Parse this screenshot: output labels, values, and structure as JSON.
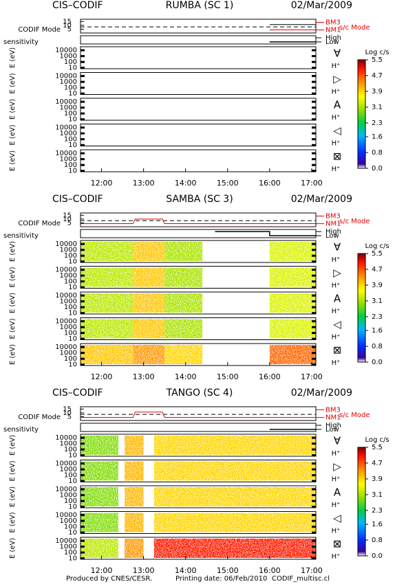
{
  "chart_data": [
    {
      "type": "spectrogram",
      "title_left": "CIS–CODIF",
      "title": "RUMBA (SC 1)",
      "date": "02/Mar/2009",
      "xlim": [
        11.5,
        17.1
      ],
      "xticks": [
        {
          "value": 12,
          "label": "12:00"
        },
        {
          "value": 13,
          "label": "13:00"
        },
        {
          "value": 14,
          "label": "14:00"
        },
        {
          "value": 15,
          "label": "15:00"
        },
        {
          "value": 16,
          "label": "16:00"
        },
        {
          "value": 17,
          "label": "17:00"
        }
      ],
      "mode_panel": {
        "label": "CODIF Mode",
        "ylim": [
          0,
          18
        ],
        "yticks": [
          15,
          10,
          5
        ],
        "y2ticks": [
          {
            "value": 14,
            "label": "BM3"
          },
          {
            "value": 4,
            "label": "NM1"
          }
        ],
        "y2_title": "s/c Mode",
        "series": [
          {
            "color": "#000000",
            "dashed": true,
            "x": [
              11.5,
              17.1
            ],
            "values": [
              8,
              8
            ]
          },
          {
            "color": "#000000",
            "dashed": false,
            "x": [
              16.0,
              17.1
            ],
            "values": [
              11,
              11
            ]
          },
          {
            "color": "#e00000",
            "dashed": false,
            "x": [
              16.0,
              17.1
            ],
            "values": [
              4,
              4
            ]
          }
        ]
      },
      "sensitivity": {
        "label": "sensitivity",
        "ylim": [
          -0.5,
          1.5
        ],
        "yticks": [
          {
            "value": 1,
            "label": "High"
          },
          {
            "value": 0,
            "label": "Low"
          }
        ],
        "series": [
          {
            "color": "#000000",
            "x": [
              16.0,
              17.1
            ],
            "values": [
              0,
              0
            ]
          }
        ]
      },
      "log_y": true,
      "ylim": [
        7,
        40000
      ],
      "yticks": [
        10000,
        1000,
        100,
        10
      ],
      "rows": [
        {
          "ylabel": "E (eV)",
          "symbol": "∀",
          "species": "H⁺",
          "segments": []
        },
        {
          "ylabel": "E (eV)",
          "symbol": "▷",
          "species": "H⁺",
          "segments": []
        },
        {
          "ylabel": "E (eV)",
          "symbol": "A",
          "species": "H⁺",
          "segments": []
        },
        {
          "ylabel": "E (eV)",
          "symbol": "◁",
          "species": "H⁺",
          "segments": []
        },
        {
          "ylabel": "E (eV)",
          "symbol": "⊠",
          "species": "H⁺",
          "segments": []
        }
      ],
      "colorbar": {
        "label": "Log c/s",
        "lim": [
          0,
          5.5
        ],
        "ticks": [
          {
            "value": 0,
            "label": "0.0"
          },
          0.8,
          1.6,
          2.3,
          3.1,
          3.9,
          4.7,
          5.5
        ]
      }
    },
    {
      "type": "spectrogram",
      "title_left": "CIS–CODIF",
      "title": "SAMBA (SC 3)",
      "date": "02/Mar/2009",
      "xlim": [
        11.5,
        17.1
      ],
      "xticks": [
        {
          "value": 12,
          "label": "12:00"
        },
        {
          "value": 13,
          "label": "13:00"
        },
        {
          "value": 14,
          "label": "14:00"
        },
        {
          "value": 15,
          "label": "15:00"
        },
        {
          "value": 16,
          "label": "16:00"
        },
        {
          "value": 17,
          "label": "17:00"
        }
      ],
      "mode_panel": {
        "label": "CODIF Mode",
        "ylim": [
          0,
          18
        ],
        "yticks": [
          15,
          10,
          5
        ],
        "y2ticks": [
          {
            "value": 14,
            "label": "BM3"
          },
          {
            "value": 4,
            "label": "NM1"
          }
        ],
        "y2_title": "s/c Mode",
        "series": [
          {
            "color": "#000000",
            "dashed": true,
            "x": [
              11.5,
              17.1
            ],
            "values": [
              8,
              8
            ]
          },
          {
            "color": "#e00000",
            "dashed": false,
            "x": [
              11.5,
              12.75,
              12.8,
              13.45,
              13.5,
              17.1
            ],
            "values": [
              4,
              4,
              10,
              10,
              4,
              4
            ]
          }
        ]
      },
      "sensitivity": {
        "label": "sensitivity",
        "ylim": [
          -0.5,
          1.5
        ],
        "yticks": [
          {
            "value": 1,
            "label": "High"
          },
          {
            "value": 0,
            "label": "Low"
          }
        ],
        "series": [
          {
            "color": "#000000",
            "x": [
              14.7,
              16.0,
              16.0,
              17.1
            ],
            "values": [
              1,
              1,
              0,
              0
            ]
          }
        ]
      },
      "log_y": true,
      "ylim": [
        7,
        40000
      ],
      "yticks": [
        10000,
        1000,
        100,
        10
      ],
      "rows": [
        {
          "ylabel": "E (eV)",
          "symbol": "∀",
          "species": "H⁺",
          "segments": [
            {
              "start": 11.5,
              "end": 12.75,
              "level": 3.2
            },
            {
              "start": 12.75,
              "end": 13.5,
              "level": 4.0
            },
            {
              "start": 13.5,
              "end": 14.4,
              "level": 3.1
            },
            {
              "start": 16.0,
              "end": 17.1,
              "level": 3.4
            }
          ]
        },
        {
          "ylabel": "E (eV)",
          "symbol": "▷",
          "species": "H⁺",
          "segments": [
            {
              "start": 11.5,
              "end": 12.75,
              "level": 3.2
            },
            {
              "start": 12.75,
              "end": 13.5,
              "level": 4.0
            },
            {
              "start": 13.5,
              "end": 14.4,
              "level": 3.1
            },
            {
              "start": 16.0,
              "end": 17.1,
              "level": 3.4
            }
          ]
        },
        {
          "ylabel": "E (eV)",
          "symbol": "A",
          "species": "H⁺",
          "segments": [
            {
              "start": 11.5,
              "end": 12.75,
              "level": 3.2
            },
            {
              "start": 12.75,
              "end": 13.5,
              "level": 4.0
            },
            {
              "start": 13.5,
              "end": 14.4,
              "level": 3.1
            },
            {
              "start": 16.0,
              "end": 17.1,
              "level": 3.4
            }
          ]
        },
        {
          "ylabel": "E (eV)",
          "symbol": "◁",
          "species": "H⁺",
          "segments": [
            {
              "start": 11.5,
              "end": 12.75,
              "level": 3.2
            },
            {
              "start": 12.75,
              "end": 13.5,
              "level": 4.0
            },
            {
              "start": 13.5,
              "end": 14.4,
              "level": 3.1
            },
            {
              "start": 16.0,
              "end": 17.1,
              "level": 3.4
            }
          ]
        },
        {
          "ylabel": "E (eV)",
          "symbol": "⊠",
          "species": "H⁺",
          "segments": [
            {
              "start": 11.5,
              "end": 12.75,
              "level": 4.0
            },
            {
              "start": 12.75,
              "end": 13.5,
              "level": 4.3
            },
            {
              "start": 13.5,
              "end": 14.4,
              "level": 3.9
            },
            {
              "start": 16.0,
              "end": 17.1,
              "level": 4.6
            }
          ]
        }
      ],
      "colorbar": {
        "label": "Log c/s",
        "lim": [
          0,
          5.5
        ],
        "ticks": [
          {
            "value": 0,
            "label": "0.0"
          },
          0.8,
          1.6,
          2.3,
          3.1,
          3.9,
          4.7,
          5.5
        ]
      }
    },
    {
      "type": "spectrogram",
      "title_left": "CIS–CODIF",
      "title": "TANGO (SC 4)",
      "date": "02/Mar/2009",
      "xlim": [
        11.5,
        17.1
      ],
      "xticks": [
        {
          "value": 12,
          "label": "12:00"
        },
        {
          "value": 13,
          "label": "13:00"
        },
        {
          "value": 14,
          "label": "14:00"
        },
        {
          "value": 15,
          "label": "15:00"
        },
        {
          "value": 16,
          "label": "16:00"
        },
        {
          "value": 17,
          "label": "17:00"
        }
      ],
      "mode_panel": {
        "label": "CODIF Mode",
        "ylim": [
          0,
          18
        ],
        "yticks": [
          15,
          10,
          5
        ],
        "y2ticks": [
          {
            "value": 14,
            "label": "BM3"
          },
          {
            "value": 4,
            "label": "NM1"
          }
        ],
        "y2_title": "s/c Mode",
        "series": [
          {
            "color": "#000000",
            "dashed": true,
            "x": [
              11.5,
              17.1
            ],
            "values": [
              8,
              8
            ]
          },
          {
            "color": "#e00000",
            "dashed": false,
            "x": [
              11.5,
              12.75,
              12.8,
              13.45,
              13.5,
              17.1
            ],
            "values": [
              4,
              4,
              11,
              11,
              4,
              4
            ]
          }
        ]
      },
      "sensitivity": {
        "label": "sensitivity",
        "ylim": [
          -0.5,
          1.5
        ],
        "yticks": [
          {
            "value": 1,
            "label": "High"
          },
          {
            "value": 0,
            "label": "Low"
          }
        ],
        "series": [
          {
            "color": "#000000",
            "x": [
              16.0,
              17.1
            ],
            "values": [
              0,
              0
            ]
          }
        ]
      },
      "log_y": true,
      "ylim": [
        7,
        40000
      ],
      "yticks": [
        10000,
        1000,
        100,
        10
      ],
      "rows": [
        {
          "ylabel": "E (eV)",
          "symbol": "∀",
          "species": "H⁺",
          "segments": [
            {
              "start": 11.5,
              "end": 12.4,
              "level": 2.9
            },
            {
              "start": 12.55,
              "end": 13.0,
              "level": 4.1
            },
            {
              "start": 13.25,
              "end": 17.1,
              "level": 3.9
            }
          ]
        },
        {
          "ylabel": "E (eV)",
          "symbol": "▷",
          "species": "H⁺",
          "segments": [
            {
              "start": 11.5,
              "end": 12.4,
              "level": 2.9
            },
            {
              "start": 12.55,
              "end": 13.0,
              "level": 4.1
            },
            {
              "start": 13.25,
              "end": 17.1,
              "level": 3.9
            }
          ]
        },
        {
          "ylabel": "E (eV)",
          "symbol": "A",
          "species": "H⁺",
          "segments": [
            {
              "start": 11.5,
              "end": 12.4,
              "level": 2.9
            },
            {
              "start": 12.55,
              "end": 13.0,
              "level": 4.1
            },
            {
              "start": 13.25,
              "end": 17.1,
              "level": 3.9
            }
          ]
        },
        {
          "ylabel": "E (eV)",
          "symbol": "◁",
          "species": "H⁺",
          "segments": [
            {
              "start": 11.5,
              "end": 12.4,
              "level": 2.9
            },
            {
              "start": 12.55,
              "end": 13.0,
              "level": 4.1
            },
            {
              "start": 13.25,
              "end": 17.1,
              "level": 3.9
            }
          ]
        },
        {
          "ylabel": "E (eV)",
          "symbol": "⊠",
          "species": "H⁺",
          "segments": [
            {
              "start": 11.5,
              "end": 12.4,
              "level": 3.2
            },
            {
              "start": 12.55,
              "end": 13.0,
              "level": 4.3
            },
            {
              "start": 13.25,
              "end": 17.1,
              "level": 5.0
            }
          ]
        }
      ],
      "colorbar": {
        "label": "Log c/s",
        "lim": [
          0,
          5.5
        ],
        "ticks": [
          {
            "value": 0,
            "label": "0.0"
          },
          0.8,
          1.6,
          2.3,
          3.1,
          3.9,
          4.7,
          5.5
        ]
      }
    }
  ],
  "footer": [
    "Produced by CNES/CESR.",
    "Printing date: 06/Feb/2010",
    "CODIF_multisc.cl"
  ]
}
